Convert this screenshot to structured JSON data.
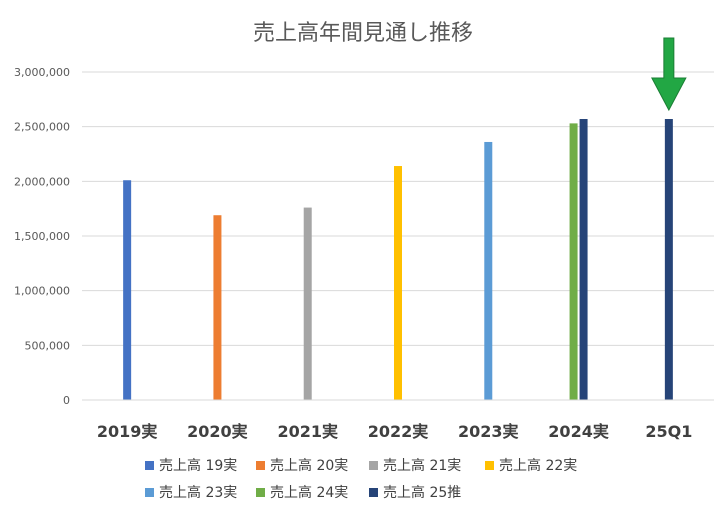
{
  "chart_data": {
    "type": "bar",
    "title": "売上高年間見通し推移",
    "xlabel": "",
    "ylabel": "",
    "ylim": [
      0,
      3000000
    ],
    "yticks": [
      "0",
      "500,000",
      "1,000,000",
      "1,500,000",
      "2,000,000",
      "2,500,000",
      "3,000,000"
    ],
    "categories": [
      "2019実",
      "2020実",
      "2021実",
      "2022実",
      "2023実",
      "2024実",
      "25Q1"
    ],
    "series": [
      {
        "name": "売上高 19実",
        "color": "#4472C4",
        "values": [
          2010000,
          null,
          null,
          null,
          null,
          null,
          null
        ]
      },
      {
        "name": "売上高 20実",
        "color": "#ED7D31",
        "values": [
          null,
          1690000,
          null,
          null,
          null,
          null,
          null
        ]
      },
      {
        "name": "売上高 21実",
        "color": "#A5A5A5",
        "values": [
          null,
          null,
          1760000,
          null,
          null,
          null,
          null
        ]
      },
      {
        "name": "売上高 22実",
        "color": "#FFC000",
        "values": [
          null,
          null,
          null,
          2140000,
          null,
          null,
          null
        ]
      },
      {
        "name": "売上高 23実",
        "color": "#5B9BD5",
        "values": [
          null,
          null,
          null,
          null,
          2360000,
          null,
          null
        ]
      },
      {
        "name": "売上高 24実",
        "color": "#70AD47",
        "values": [
          null,
          null,
          null,
          null,
          null,
          2530000,
          null
        ]
      },
      {
        "name": "売上高 25推",
        "color": "#264478",
        "values": [
          null,
          null,
          null,
          null,
          null,
          2570000,
          2570000
        ]
      }
    ],
    "grid": true,
    "legend_position": "bottom",
    "annotation": {
      "type": "arrow",
      "color": "#22A744",
      "points_to": "25Q1"
    }
  }
}
